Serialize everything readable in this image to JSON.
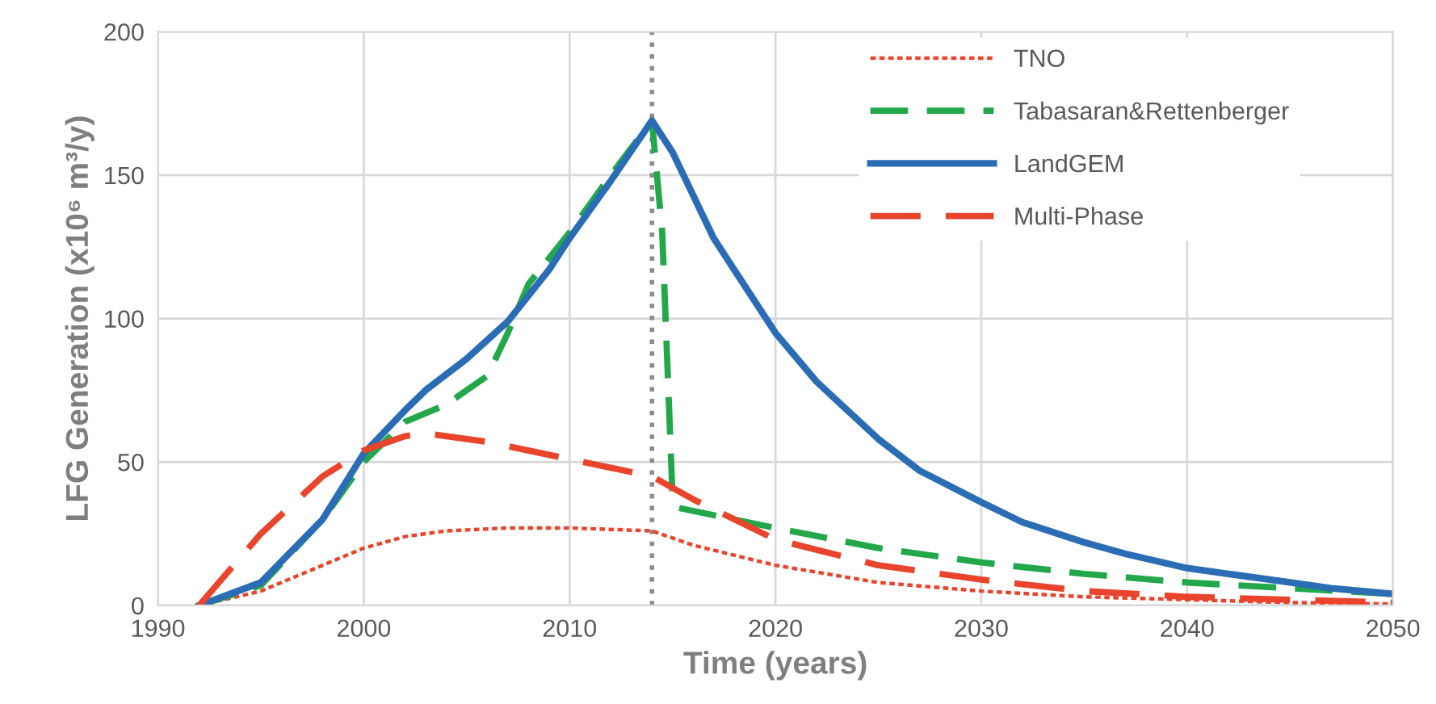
{
  "chart_data": {
    "type": "line",
    "xlabel": "Time (years)",
    "ylabel": "LFG Generation (x10⁶ m³/y)",
    "xlim": [
      1990,
      2050
    ],
    "xticks": [
      1990,
      2000,
      2010,
      2020,
      2030,
      2040,
      2050
    ],
    "ylim": [
      0,
      200
    ],
    "yticks": [
      0,
      50,
      100,
      150,
      200
    ],
    "grid": true,
    "legend": "top right",
    "marker": "none",
    "ref_lines": [
      {
        "axis": "x",
        "value": 2014,
        "label": null,
        "color": "#8c8c8c",
        "line_style": "dotted"
      }
    ],
    "series": [
      {
        "name": "TNO",
        "color": "#e8452c",
        "line_style": "dotted",
        "x": [
          1992,
          1995,
          1998,
          2000,
          2002,
          2004,
          2007,
          2010,
          2014,
          2016,
          2020,
          2025,
          2030,
          2035,
          2040,
          2045,
          2050
        ],
        "values": [
          0,
          5,
          14,
          20,
          24,
          26,
          27,
          27,
          26,
          21,
          14,
          8,
          5,
          3,
          2,
          1,
          0.5
        ]
      },
      {
        "name": "Tabasaran&Rettenberger",
        "color": "#22a84a",
        "line_style": "dashed",
        "x": [
          1992,
          1995,
          1998,
          2000,
          2002,
          2004,
          2006,
          2007,
          2008,
          2010,
          2012,
          2014,
          2014.5,
          2015,
          2015.3,
          2020,
          2025,
          2030,
          2035,
          2040,
          2045,
          2050
        ],
        "values": [
          0,
          7,
          30,
          50,
          64,
          70,
          80,
          95,
          112,
          130,
          150,
          169,
          130,
          38,
          34,
          27,
          20,
          15,
          11,
          8,
          6,
          4
        ]
      },
      {
        "name": "LandGEM",
        "color": "#2a6db5",
        "line_style": "solid",
        "x": [
          1992,
          1995,
          1998,
          2000,
          2002,
          2003,
          2005,
          2007,
          2009,
          2010,
          2012,
          2014,
          2015,
          2016,
          2017,
          2018,
          2020,
          2022,
          2025,
          2027,
          2030,
          2032,
          2035,
          2037,
          2040,
          2042,
          2045,
          2047,
          2050
        ],
        "values": [
          0,
          8,
          30,
          53,
          68,
          75,
          86,
          99,
          117,
          128,
          148,
          169,
          158,
          143,
          128,
          117,
          95,
          78,
          58,
          47,
          36,
          29,
          22,
          18,
          13,
          11,
          8,
          6,
          4
        ]
      },
      {
        "name": "Multi-Phase",
        "color": "#e8452c",
        "line_style": "dashed",
        "x": [
          1992,
          1995,
          1998,
          2000,
          2002,
          2003,
          2006,
          2010,
          2014,
          2016,
          2018,
          2020,
          2025,
          2030,
          2035,
          2040,
          2045,
          2050
        ],
        "values": [
          0,
          25,
          45,
          54,
          59,
          60,
          57,
          51,
          45,
          37,
          30,
          23,
          14,
          9,
          5,
          3,
          2,
          1
        ]
      }
    ]
  }
}
